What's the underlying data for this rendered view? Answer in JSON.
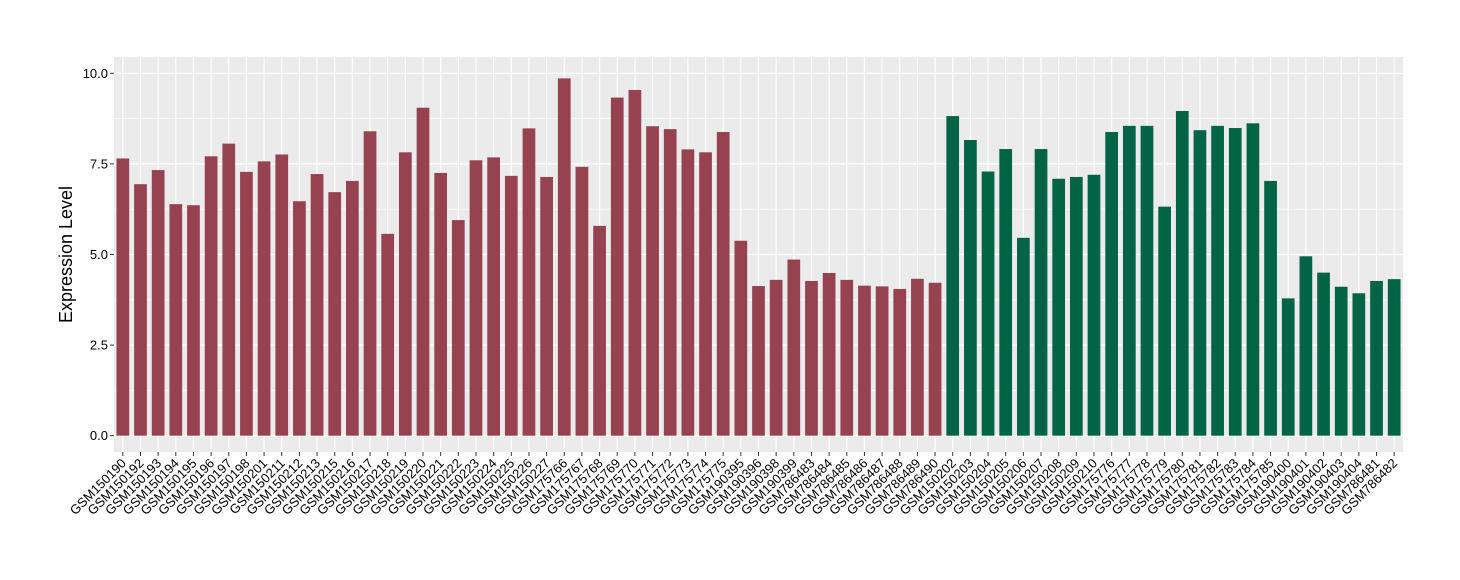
{
  "chart_data": {
    "type": "bar",
    "ylabel": "Expression Level",
    "xlabel": "",
    "title": "",
    "ylim": [
      -0.45,
      10.45
    ],
    "yticks": [
      0.0,
      2.5,
      5.0,
      7.5,
      10.0
    ],
    "ytick_labels": [
      "0.0",
      "2.5",
      "5.0",
      "7.5",
      "10.0"
    ],
    "grid": true,
    "legend": "none",
    "colors": {
      "group1": "#964251",
      "group2": "#006445",
      "panel": "#ebebeb",
      "grid": "#ffffff"
    },
    "categories": [
      "GSM150190",
      "GSM150192",
      "GSM150193",
      "GSM150194",
      "GSM150195",
      "GSM150196",
      "GSM150197",
      "GSM150198",
      "GSM150201",
      "GSM150211",
      "GSM150212",
      "GSM150213",
      "GSM150215",
      "GSM150216",
      "GSM150217",
      "GSM150218",
      "GSM150219",
      "GSM150220",
      "GSM150221",
      "GSM150222",
      "GSM150223",
      "GSM150224",
      "GSM150225",
      "GSM150226",
      "GSM150227",
      "GSM175766",
      "GSM175767",
      "GSM175768",
      "GSM175769",
      "GSM175770",
      "GSM175771",
      "GSM175772",
      "GSM175773",
      "GSM175774",
      "GSM175775",
      "GSM190395",
      "GSM190396",
      "GSM190398",
      "GSM190399",
      "GSM786483",
      "GSM786484",
      "GSM786485",
      "GSM786486",
      "GSM786487",
      "GSM786488",
      "GSM786489",
      "GSM786490",
      "GSM150202",
      "GSM150203",
      "GSM150204",
      "GSM150205",
      "GSM150206",
      "GSM150207",
      "GSM150208",
      "GSM150209",
      "GSM150210",
      "GSM175776",
      "GSM175777",
      "GSM175778",
      "GSM175779",
      "GSM175780",
      "GSM175781",
      "GSM175782",
      "GSM175783",
      "GSM175784",
      "GSM175785",
      "GSM190400",
      "GSM190401",
      "GSM190402",
      "GSM190403",
      "GSM190404",
      "GSM786481",
      "GSM786482"
    ],
    "values": [
      7.65,
      6.94,
      7.33,
      6.39,
      6.36,
      7.71,
      8.06,
      7.28,
      7.57,
      7.76,
      6.47,
      7.22,
      6.72,
      7.03,
      8.4,
      5.57,
      7.82,
      9.05,
      7.25,
      5.95,
      7.6,
      7.68,
      7.17,
      8.48,
      7.14,
      9.86,
      7.42,
      5.79,
      9.33,
      9.54,
      8.54,
      8.46,
      7.9,
      7.82,
      8.38,
      5.38,
      4.13,
      4.3,
      4.86,
      4.27,
      4.49,
      4.3,
      4.14,
      4.12,
      4.05,
      4.33,
      4.22,
      8.82,
      8.16,
      7.29,
      7.91,
      5.46,
      7.91,
      7.09,
      7.14,
      7.2,
      8.38,
      8.55,
      8.55,
      6.32,
      8.96,
      8.43,
      8.55,
      8.49,
      8.62,
      7.03,
      3.79,
      4.95,
      4.5,
      4.11,
      3.93,
      4.27,
      4.32
    ],
    "groups": [
      1,
      1,
      1,
      1,
      1,
      1,
      1,
      1,
      1,
      1,
      1,
      1,
      1,
      1,
      1,
      1,
      1,
      1,
      1,
      1,
      1,
      1,
      1,
      1,
      1,
      1,
      1,
      1,
      1,
      1,
      1,
      1,
      1,
      1,
      1,
      1,
      1,
      1,
      1,
      1,
      1,
      1,
      1,
      1,
      1,
      1,
      1,
      2,
      2,
      2,
      2,
      2,
      2,
      2,
      2,
      2,
      2,
      2,
      2,
      2,
      2,
      2,
      2,
      2,
      2,
      2,
      2,
      2,
      2,
      2,
      2,
      2,
      2
    ]
  }
}
